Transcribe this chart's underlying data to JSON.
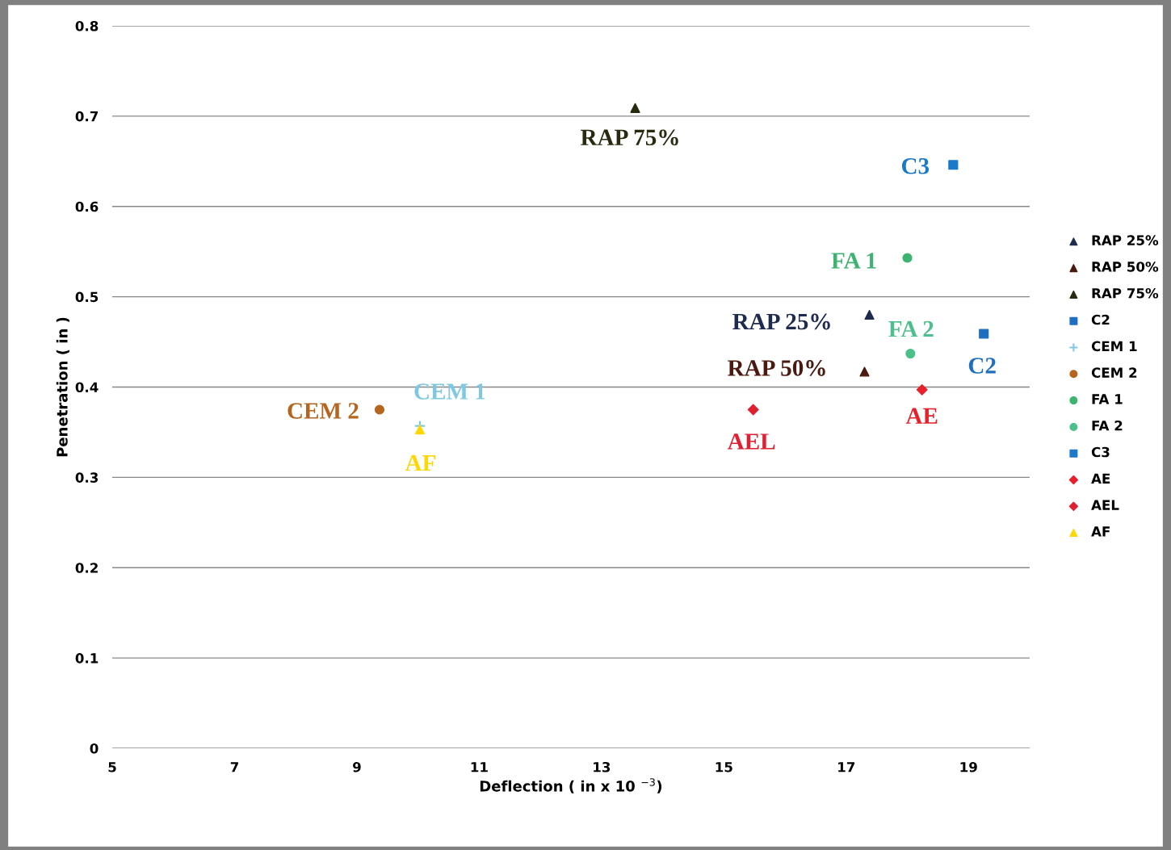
{
  "chart_data": {
    "type": "scatter",
    "xlabel": "Deflection ( in x 10 $^{−3}$)",
    "ylabel": "Penetration ( in )",
    "xlim": [
      5,
      20
    ],
    "xticks": [
      5,
      7,
      9,
      11,
      13,
      15,
      17,
      19
    ],
    "ylim": [
      0,
      0.8
    ],
    "yticks": [
      0,
      0.1,
      0.2,
      0.3,
      0.4,
      0.5,
      0.6,
      0.7,
      0.8
    ],
    "grid": "y",
    "legend": "right",
    "series": [
      {
        "name": "RAP 25%",
        "color": "#1f2a4f",
        "marker": "triangle",
        "x": [
          17.38
        ],
        "values": [
          0.48
        ]
      },
      {
        "name": "RAP 50%",
        "color": "#4a1a10",
        "marker": "triangle",
        "x": [
          17.3
        ],
        "values": [
          0.417
        ]
      },
      {
        "name": "RAP 75%",
        "color": "#2a2a10",
        "marker": "triangle",
        "x": [
          13.55
        ],
        "values": [
          0.709
        ]
      },
      {
        "name": "C2",
        "color": "#1f6fc0",
        "marker": "square",
        "x": [
          19.25
        ],
        "values": [
          0.459
        ]
      },
      {
        "name": "CEM 1",
        "color": "#7ec8e3",
        "marker": "cross",
        "x": [
          10.03
        ],
        "values": [
          0.357
        ]
      },
      {
        "name": "CEM 2",
        "color": "#b5651d",
        "marker": "circle",
        "x": [
          9.37
        ],
        "values": [
          0.375
        ]
      },
      {
        "name": "FA 1",
        "color": "#3cb371",
        "marker": "circle",
        "x": [
          18.0
        ],
        "values": [
          0.543
        ]
      },
      {
        "name": "FA 2",
        "color": "#4cc08a",
        "marker": "circle",
        "x": [
          18.05
        ],
        "values": [
          0.437
        ]
      },
      {
        "name": "C3",
        "color": "#1a7ac8",
        "marker": "square",
        "x": [
          18.75
        ],
        "values": [
          0.646
        ]
      },
      {
        "name": "AE",
        "color": "#e8202a",
        "marker": "diamond",
        "x": [
          18.24
        ],
        "values": [
          0.397
        ]
      },
      {
        "name": "AEL",
        "color": "#e02030",
        "marker": "diamond",
        "x": [
          15.48
        ],
        "values": [
          0.375
        ]
      },
      {
        "name": "AF",
        "color": "#ffd700",
        "marker": "triangle",
        "x": [
          10.03
        ],
        "values": [
          0.353
        ]
      }
    ],
    "annotations": [
      {
        "text": "RAP 75%",
        "x": 13.55,
        "y": 0.709
      },
      {
        "text": "C3",
        "x": 18.75,
        "y": 0.646
      },
      {
        "text": "FA 1",
        "x": 18.0,
        "y": 0.543
      },
      {
        "text": "RAP 25%",
        "x": 17.38,
        "y": 0.48
      },
      {
        "text": "FA 2",
        "x": 18.05,
        "y": 0.437
      },
      {
        "text": "C2",
        "x": 19.25,
        "y": 0.459
      },
      {
        "text": "RAP 50%",
        "x": 17.3,
        "y": 0.417
      },
      {
        "text": "CEM 1",
        "x": 10.03,
        "y": 0.357
      },
      {
        "text": "CEM 2",
        "x": 9.37,
        "y": 0.375
      },
      {
        "text": "AE",
        "x": 18.24,
        "y": 0.397
      },
      {
        "text": "AEL",
        "x": 15.48,
        "y": 0.375
      },
      {
        "text": "AF",
        "x": 10.03,
        "y": 0.353
      }
    ]
  }
}
